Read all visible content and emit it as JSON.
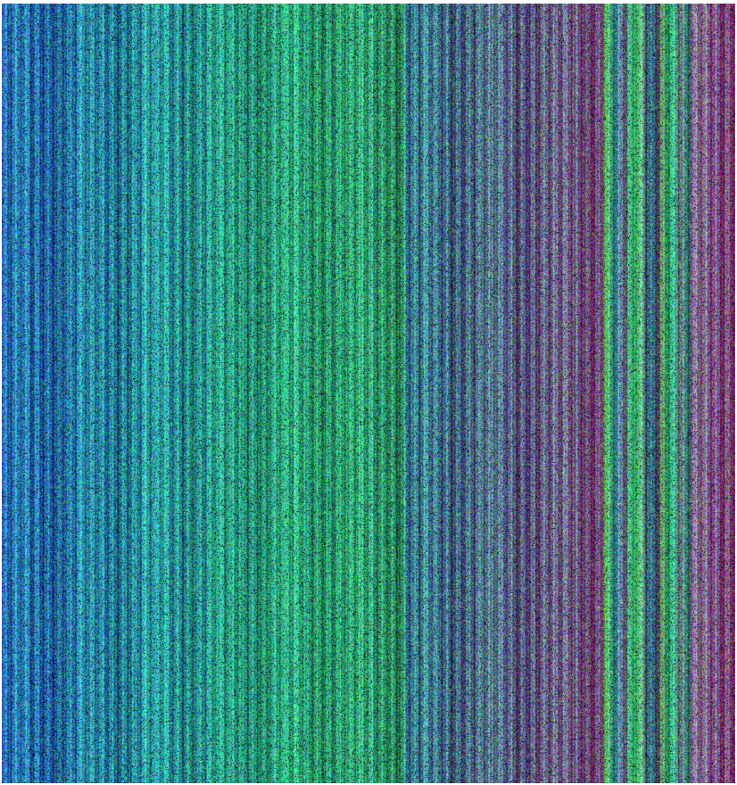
{
  "image": {
    "subject": "noise-stripes",
    "palette": {
      "background": "#ffffff",
      "blue": "#2f48c8",
      "teal": "#1f8f9a",
      "green": "#2fcf72",
      "dark": "#07120f",
      "purple": "#7a4aa0",
      "olive": "#8a9a4a"
    }
  }
}
